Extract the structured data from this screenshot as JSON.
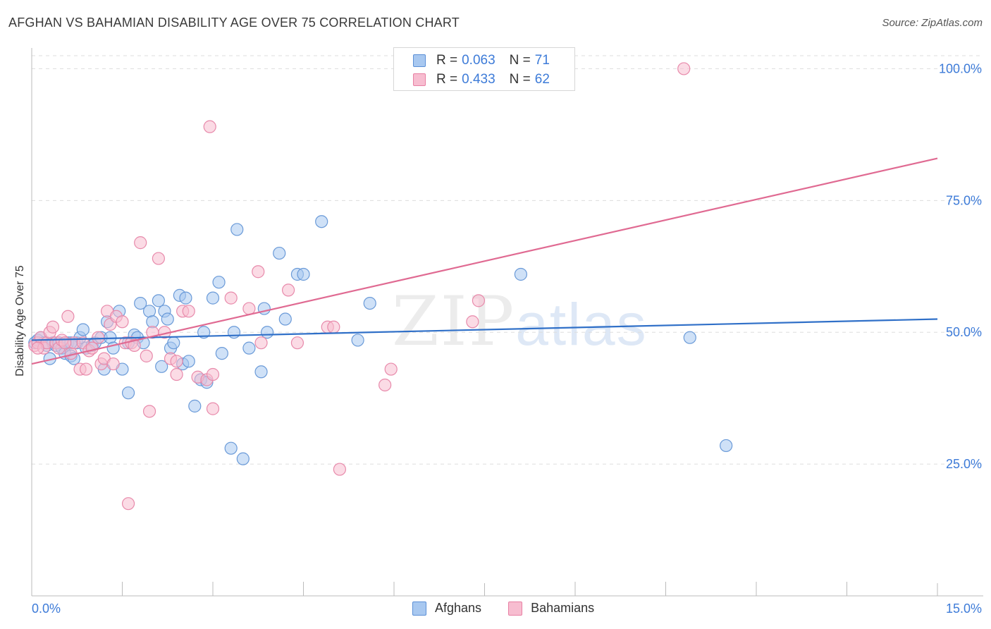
{
  "title": "AFGHAN VS BAHAMIAN DISABILITY AGE OVER 75 CORRELATION CHART",
  "source": "Source: ZipAtlas.com",
  "watermark": {
    "zip": "ZIP",
    "atlas": "atlas"
  },
  "legend_top": {
    "rows": [
      {
        "r_label": "R =",
        "r_value": "0.063",
        "n_label": "N =",
        "n_value": "71",
        "color": "#a8c8f0",
        "border": "#5b8fd6"
      },
      {
        "r_label": "R =",
        "r_value": "0.433",
        "n_label": "N =",
        "n_value": "62",
        "color": "#f7bdd0",
        "border": "#e87fa3"
      }
    ]
  },
  "legend_bottom": [
    {
      "label": "Afghans",
      "color": "#a8c8f0",
      "border": "#5b8fd6"
    },
    {
      "label": "Bahamians",
      "color": "#f7bdd0",
      "border": "#e87fa3"
    }
  ],
  "chart_data": {
    "type": "scatter",
    "title": "AFGHAN VS BAHAMIAN DISABILITY AGE OVER 75 CORRELATION CHART",
    "xlabel": "",
    "ylabel": "Disability Age Over 75",
    "xlim": [
      0,
      15
    ],
    "ylim": [
      0,
      103
    ],
    "x_tick_labels": [
      "0.0%",
      "15.0%"
    ],
    "y_ticks": [
      25,
      50,
      75,
      100
    ],
    "y_tick_labels": [
      "25.0%",
      "50.0%",
      "75.0%",
      "100.0%"
    ],
    "colors": {
      "afghans_line": "#3070c8",
      "bahamians_line": "#e06a92",
      "tick_label": "#3d7bd8"
    },
    "series": [
      {
        "name": "Afghans",
        "color": "#a8c8f0",
        "border": "#6a9ad8",
        "trend": {
          "x": [
            0,
            15
          ],
          "y": [
            48.5,
            52.5
          ]
        },
        "points": [
          [
            0.05,
            48
          ],
          [
            0.1,
            48.5
          ],
          [
            0.15,
            49
          ],
          [
            0.2,
            48
          ],
          [
            0.25,
            47.5
          ],
          [
            0.3,
            45
          ],
          [
            0.35,
            48
          ],
          [
            0.4,
            47.5
          ],
          [
            0.45,
            48
          ],
          [
            0.5,
            47
          ],
          [
            0.55,
            46
          ],
          [
            0.6,
            48
          ],
          [
            0.65,
            45.5
          ],
          [
            0.7,
            45
          ],
          [
            0.75,
            48
          ],
          [
            0.8,
            49
          ],
          [
            0.85,
            50.5
          ],
          [
            0.9,
            47
          ],
          [
            1.0,
            47.5
          ],
          [
            1.05,
            48
          ],
          [
            1.15,
            49
          ],
          [
            1.2,
            43
          ],
          [
            1.25,
            52
          ],
          [
            1.3,
            49
          ],
          [
            1.35,
            47
          ],
          [
            1.45,
            54
          ],
          [
            1.5,
            43
          ],
          [
            1.6,
            48
          ],
          [
            1.7,
            49.5
          ],
          [
            1.75,
            49
          ],
          [
            1.8,
            55.5
          ],
          [
            1.85,
            48
          ],
          [
            1.95,
            54
          ],
          [
            2.0,
            52
          ],
          [
            2.1,
            56
          ],
          [
            2.15,
            43.5
          ],
          [
            2.2,
            54
          ],
          [
            2.25,
            52.5
          ],
          [
            2.3,
            47
          ],
          [
            2.35,
            48
          ],
          [
            2.45,
            57
          ],
          [
            2.5,
            44
          ],
          [
            2.55,
            56.5
          ],
          [
            2.6,
            44.5
          ],
          [
            2.7,
            36
          ],
          [
            2.8,
            41
          ],
          [
            2.85,
            50
          ],
          [
            2.9,
            40.5
          ],
          [
            3.0,
            56.5
          ],
          [
            3.1,
            59.5
          ],
          [
            3.15,
            46
          ],
          [
            3.3,
            28
          ],
          [
            3.35,
            50
          ],
          [
            3.4,
            69.5
          ],
          [
            3.5,
            26
          ],
          [
            3.6,
            47
          ],
          [
            3.8,
            42.5
          ],
          [
            3.85,
            54.5
          ],
          [
            3.9,
            50
          ],
          [
            4.1,
            65
          ],
          [
            4.2,
            52.5
          ],
          [
            4.4,
            61
          ],
          [
            4.5,
            61
          ],
          [
            4.8,
            71
          ],
          [
            5.4,
            48.5
          ],
          [
            5.6,
            55.5
          ],
          [
            8.1,
            61
          ],
          [
            10.9,
            49
          ],
          [
            11.5,
            28.5
          ],
          [
            1.6,
            38.5
          ],
          [
            0.65,
            48
          ]
        ]
      },
      {
        "name": "Bahamians",
        "color": "#f7bdd0",
        "border": "#e88aab",
        "trend": {
          "x": [
            0,
            15
          ],
          "y": [
            44,
            83
          ]
        },
        "points": [
          [
            0.05,
            47.5
          ],
          [
            0.1,
            48
          ],
          [
            0.15,
            49
          ],
          [
            0.2,
            47
          ],
          [
            0.25,
            48
          ],
          [
            0.3,
            50
          ],
          [
            0.35,
            51
          ],
          [
            0.4,
            48
          ],
          [
            0.45,
            47
          ],
          [
            0.5,
            48.5
          ],
          [
            0.6,
            53
          ],
          [
            0.65,
            46
          ],
          [
            0.7,
            48
          ],
          [
            0.8,
            43
          ],
          [
            0.85,
            48
          ],
          [
            0.9,
            43
          ],
          [
            0.95,
            46.5
          ],
          [
            1.0,
            47
          ],
          [
            1.1,
            49
          ],
          [
            1.15,
            44
          ],
          [
            1.2,
            45
          ],
          [
            1.25,
            54
          ],
          [
            1.3,
            51.5
          ],
          [
            1.35,
            44
          ],
          [
            1.4,
            53
          ],
          [
            1.5,
            52
          ],
          [
            1.55,
            48
          ],
          [
            1.6,
            17.5
          ],
          [
            1.65,
            48
          ],
          [
            1.8,
            67
          ],
          [
            1.9,
            45.5
          ],
          [
            1.95,
            35
          ],
          [
            2.0,
            50
          ],
          [
            2.1,
            64
          ],
          [
            2.2,
            50
          ],
          [
            2.3,
            45
          ],
          [
            2.4,
            42
          ],
          [
            2.5,
            54
          ],
          [
            2.6,
            54
          ],
          [
            2.75,
            41.5
          ],
          [
            2.9,
            41
          ],
          [
            2.95,
            89
          ],
          [
            3.0,
            35.5
          ],
          [
            3.3,
            56.5
          ],
          [
            3.6,
            54.5
          ],
          [
            3.75,
            61.5
          ],
          [
            3.8,
            48
          ],
          [
            4.25,
            58
          ],
          [
            4.4,
            48
          ],
          [
            4.9,
            51
          ],
          [
            5.0,
            51
          ],
          [
            5.1,
            24
          ],
          [
            5.85,
            40
          ],
          [
            5.95,
            43
          ],
          [
            7.3,
            52
          ],
          [
            7.4,
            56
          ],
          [
            10.8,
            100
          ],
          [
            0.1,
            47
          ],
          [
            0.55,
            48
          ],
          [
            2.4,
            44.5
          ],
          [
            1.7,
            47.5
          ],
          [
            3.0,
            42
          ]
        ]
      }
    ]
  }
}
